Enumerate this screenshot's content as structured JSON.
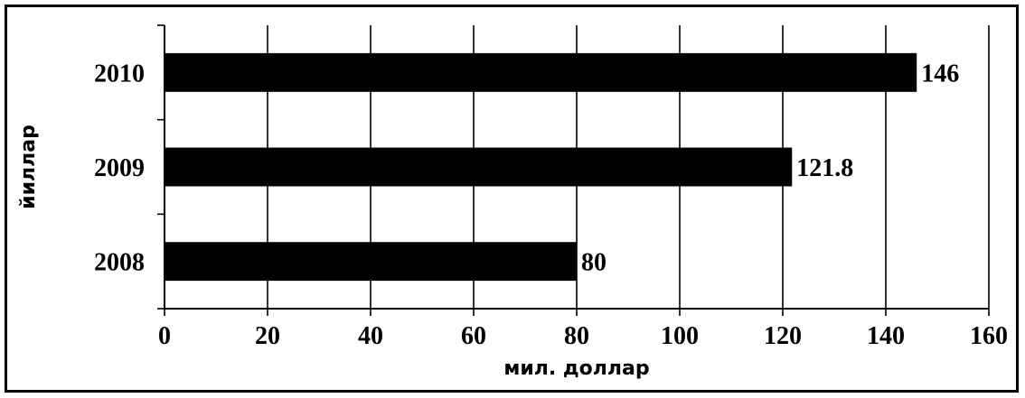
{
  "chart_data": {
    "type": "bar",
    "orientation": "horizontal",
    "categories": [
      "2008",
      "2009",
      "2010"
    ],
    "values": [
      80,
      121.8,
      146
    ],
    "data_labels": [
      "80",
      "121.8",
      "146"
    ],
    "xlabel": "мил. доллар",
    "ylabel": "йиллар",
    "xlim": [
      0,
      160
    ],
    "x_ticks": [
      "0",
      "20",
      "40",
      "60",
      "80",
      "100",
      "120",
      "140",
      "160"
    ],
    "grid": "vertical",
    "legend": "none",
    "colors": {
      "bar": "#000000",
      "grid": "#000000",
      "background": "#ffffff"
    }
  }
}
